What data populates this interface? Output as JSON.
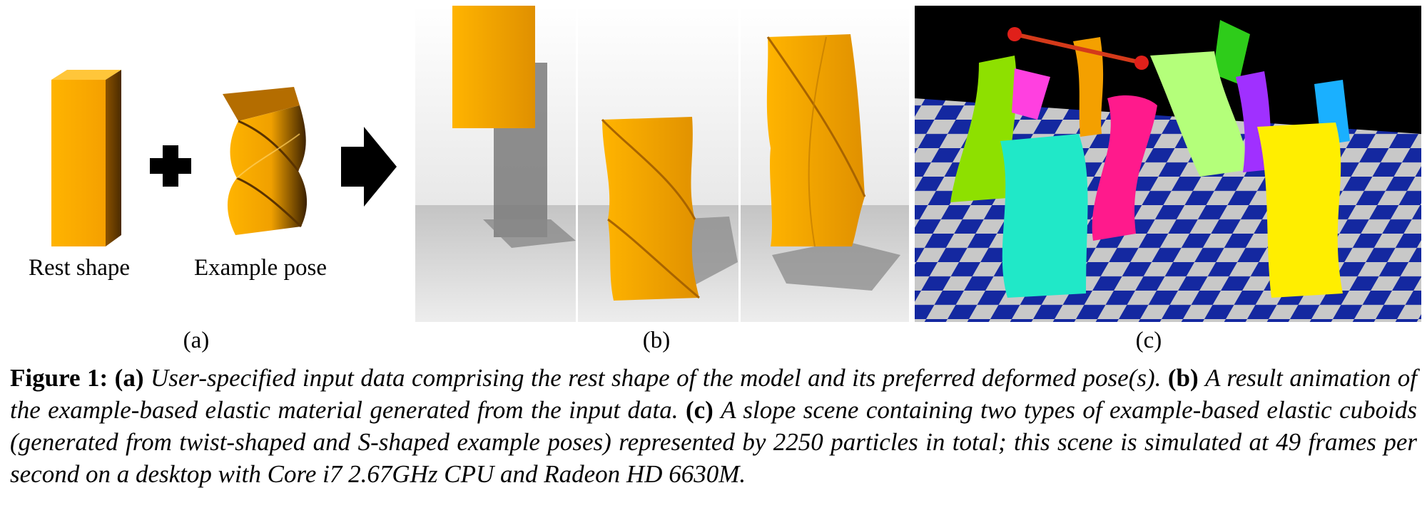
{
  "panel_a": {
    "rest_shape_label": "Rest shape",
    "example_pose_label": "Example pose"
  },
  "subfigure_labels": {
    "a": "(a)",
    "b": "(b)",
    "c": "(c)"
  },
  "colors": {
    "cuboid_orange": "#fdb000",
    "cuboid_dark": "#6b3b00",
    "floor_blue": "#1428a0",
    "floor_grey": "#c8c8c8",
    "background_black": "#000000"
  },
  "caption": {
    "figure_label": "Figure 1:",
    "a_tag": "(a)",
    "a_text": "User-specified input data comprising the rest shape of the model and its preferred deformed pose(s).",
    "b_tag": "(b)",
    "b_text": "A result animation of the example-based elastic material generated from the input data.",
    "c_tag": "(c)",
    "c_text": "A slope scene containing two types of example-based elastic cuboids (generated from twist-shaped and S-shaped example poses) represented by 2250 particles in total; this scene is simulated at 49 frames per second on a desktop with Core i7 2.67GHz CPU and Radeon HD 6630M."
  }
}
